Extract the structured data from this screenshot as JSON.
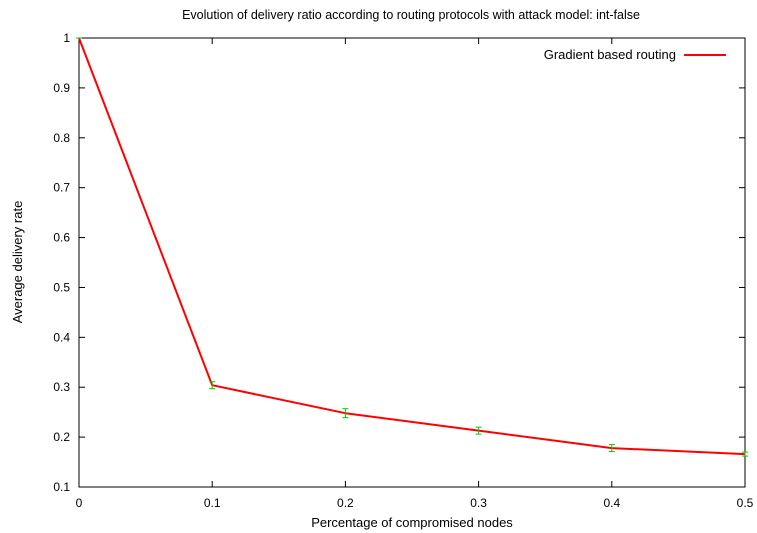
{
  "chart_data": {
    "type": "line",
    "title": "Evolution of delivery ratio according to routing protocols with attack model: int-false",
    "xlabel": "Percentage of compromised nodes",
    "ylabel": "Average delivery rate",
    "xlim": [
      0,
      0.5
    ],
    "ylim": [
      0.1,
      1
    ],
    "x_ticks": [
      "0",
      "0.1",
      "0.2",
      "0.3",
      "0.4",
      "0.5"
    ],
    "y_ticks": [
      "0.1",
      "0.2",
      "0.3",
      "0.4",
      "0.5",
      "0.6",
      "0.7",
      "0.8",
      "0.9",
      "1"
    ],
    "grid": false,
    "legend_position": "top-right",
    "series": [
      {
        "name": "Gradient based routing",
        "color": "#ff0000",
        "x": [
          0,
          0.1,
          0.2,
          0.3,
          0.4,
          0.5
        ],
        "values": [
          1.0,
          0.304,
          0.248,
          0.213,
          0.178,
          0.166
        ],
        "error": [
          0.0,
          0.007,
          0.009,
          0.007,
          0.007,
          0.004
        ]
      }
    ],
    "errorbar_color": "#00cc00"
  }
}
